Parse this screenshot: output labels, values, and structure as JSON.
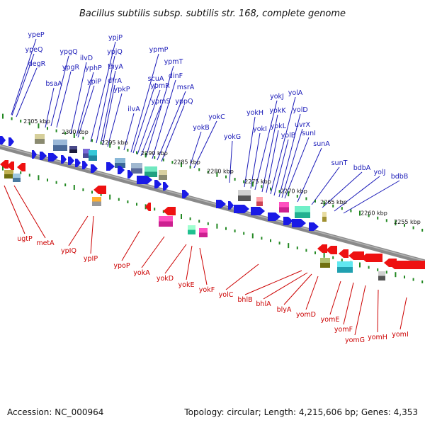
{
  "title": "Bacillus subtilis subsp. subtilis str. 168, complete genome",
  "footer": {
    "accession": "Accession: NC_000964",
    "summary": "Topology: circular; Length: 4,215,606 bp; Genes: 4,353"
  },
  "colors": {
    "forward_gene": "#1a1ae6",
    "reverse_gene": "#ee1111",
    "forward_label": "#1a1ab8",
    "reverse_label": "#cc0000",
    "backbone": "#808080",
    "scale_ticks": "#228822"
  },
  "scale_labels": [
    "2305 kbp",
    "2300 kbp",
    "2295 kbp",
    "2290 kbp",
    "2285 kbp",
    "2280 kbp",
    "2275 kbp",
    "2270 kbp",
    "2265 kbp",
    "2260 kbp",
    "2255 kbp"
  ],
  "forward_genes": [
    "ypeP",
    "ypeQ",
    "degR",
    "bsaA",
    "ypgQ",
    "ypgR",
    "ilvD",
    "yphP",
    "ypiP",
    "ypjP",
    "ypjQ",
    "thyA",
    "dfrA",
    "ypkP",
    "ilvA",
    "ypmP",
    "scuA",
    "ypmR",
    "ypmS",
    "ypmT",
    "dinF",
    "msrA",
    "yppQ",
    "yokB",
    "yokC",
    "yokG",
    "yokH",
    "yokI",
    "yokJ",
    "yokK",
    "yokL",
    "yolA",
    "yolB",
    "yolD",
    "uvrX",
    "sunI",
    "sunA",
    "sunT",
    "bdbA",
    "yolJ",
    "bdbB"
  ],
  "reverse_genes": [
    "ugtP",
    "metA",
    "ypIQ",
    "ypIP",
    "ypoP",
    "yokA",
    "yokD",
    "yokE",
    "yokF",
    "yolC",
    "bhlB",
    "bhlA",
    "blyA",
    "yomD",
    "yomE",
    "yomF",
    "yomG",
    "yomH",
    "yomI"
  ]
}
